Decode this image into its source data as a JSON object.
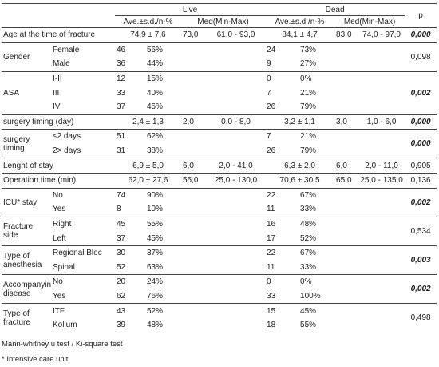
{
  "table": {
    "header": {
      "live": "Live",
      "dead": "Dead",
      "p": "p",
      "live_ave": "Ave.±s.d./n-%",
      "live_med": "Med(Min-Max)",
      "dead_ave": "Ave.±s.d./n-%",
      "dead_med": "Med(Min-Max)"
    },
    "sections": [
      {
        "label": "Age at the time of fracture",
        "live": [
          "74,9 ± 7,6",
          "73,0",
          "61,0 - 93,0"
        ],
        "dead": [
          "84,1 ± 4,7",
          "83,0",
          "74,0 - 97,0"
        ],
        "p": "0,000",
        "significant": true
      },
      {
        "label": "Gender",
        "rows": [
          {
            "label": "Female",
            "live": [
              "46",
              "56%"
            ],
            "dead": [
              "24",
              "73%"
            ]
          },
          {
            "label": "Male",
            "live": [
              "36",
              "44%"
            ],
            "dead": [
              "9",
              "27%"
            ]
          }
        ],
        "p": "0,098",
        "significant": false
      },
      {
        "label": "ASA",
        "rows": [
          {
            "label": "I-II",
            "live": [
              "12",
              "15%"
            ],
            "dead": [
              "0",
              "0%"
            ]
          },
          {
            "label": "III",
            "live": [
              "33",
              "40%"
            ],
            "dead": [
              "7",
              "21%"
            ]
          },
          {
            "label": "IV",
            "live": [
              "37",
              "45%"
            ],
            "dead": [
              "26",
              "79%"
            ]
          }
        ],
        "p": "0,002",
        "significant": true
      },
      {
        "label": "surgery timing (day)",
        "live": [
          "2,4 ± 1,3",
          "2,0",
          "0,0 - 8,0"
        ],
        "dead": [
          "3,2 ± 1,1",
          "3,0",
          "1,0 - 6,0"
        ],
        "p": "0,000",
        "significant": true
      },
      {
        "label": "surgery timing",
        "rows": [
          {
            "label": "≤2 days",
            "live": [
              "51",
              "62%"
            ],
            "dead": [
              "7",
              "21%"
            ]
          },
          {
            "label": "2> days",
            "live": [
              "31",
              "38%"
            ],
            "dead": [
              "26",
              "79%"
            ]
          }
        ],
        "p": "0,000",
        "significant": true
      },
      {
        "label": "Lenght of stay",
        "live": [
          "6,9 ± 5,0",
          "6,0",
          "2,0 - 41,0"
        ],
        "dead": [
          "6,3 ± 2,0",
          "6,0",
          "2,0 - 11,0"
        ],
        "p": "0,905",
        "significant": false
      },
      {
        "label": "Operation time (min)",
        "live": [
          "62,0 ± 27,6",
          "55,0",
          "25,0 - 130,0"
        ],
        "dead": [
          "70,6 ± 30,5",
          "65,0",
          "25,0 - 135,0"
        ],
        "p": "0,136",
        "significant": false
      },
      {
        "label": "ICU* stay",
        "rows": [
          {
            "label": "No",
            "live": [
              "74",
              "90%"
            ],
            "dead": [
              "22",
              "67%"
            ]
          },
          {
            "label": "Yes",
            "live": [
              "8",
              "10%"
            ],
            "dead": [
              "11",
              "33%"
            ]
          }
        ],
        "p": "0,002",
        "significant": true
      },
      {
        "label": "Fracture side",
        "rows": [
          {
            "label": "Right",
            "live": [
              "45",
              "55%"
            ],
            "dead": [
              "16",
              "48%"
            ]
          },
          {
            "label": "Left",
            "live": [
              "37",
              "45%"
            ],
            "dead": [
              "17",
              "52%"
            ]
          }
        ],
        "p": "0,534",
        "significant": false
      },
      {
        "label": "Type of anesthesia",
        "rows": [
          {
            "label": "Regional Bloc",
            "live": [
              "30",
              "37%"
            ],
            "dead": [
              "22",
              "67%"
            ]
          },
          {
            "label": "Spinal",
            "live": [
              "52",
              "63%"
            ],
            "dead": [
              "11",
              "33%"
            ]
          }
        ],
        "p": "0,003",
        "significant": true
      },
      {
        "label": "Accompanying disease",
        "rows": [
          {
            "label": "No",
            "live": [
              "20",
              "24%"
            ],
            "dead": [
              "0",
              "0%"
            ]
          },
          {
            "label": "Yes",
            "live": [
              "62",
              "76%"
            ],
            "dead": [
              "33",
              "100%"
            ]
          }
        ],
        "p": "0,002",
        "significant": true
      },
      {
        "label": "Type of fracture",
        "rows": [
          {
            "label": "ITF",
            "live": [
              "43",
              "52%"
            ],
            "dead": [
              "15",
              "45%"
            ]
          },
          {
            "label": "Kollum",
            "live": [
              "39",
              "48%"
            ],
            "dead": [
              "18",
              "55%"
            ]
          }
        ],
        "p": "0,498",
        "significant": false
      }
    ],
    "footnotes": [
      "Mann-whitney u test / Ki-square test",
      "* Intensive care unit"
    ]
  }
}
